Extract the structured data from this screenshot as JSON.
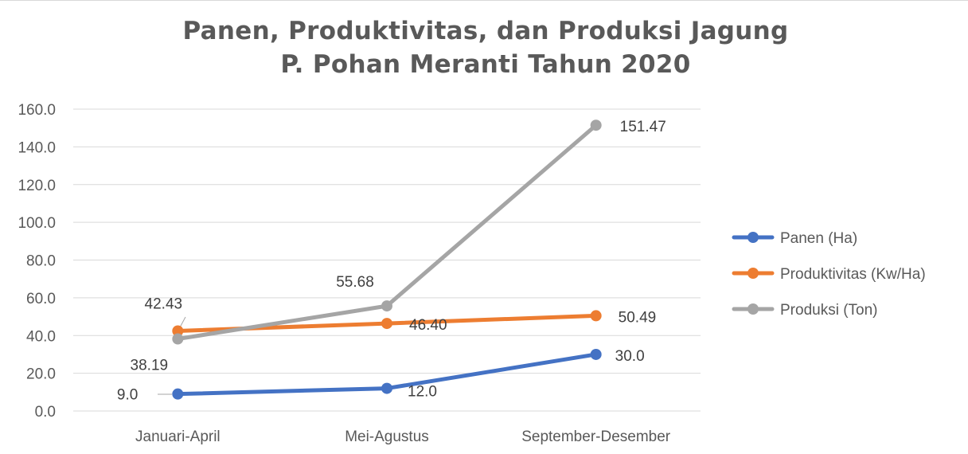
{
  "chart_data": {
    "type": "line",
    "title": [
      "Panen, Produktivitas, dan Produksi Jagung",
      "P. Pohan Meranti Tahun 2020"
    ],
    "categories": [
      "Januari-April",
      "Mei-Agustus",
      "September-Desember"
    ],
    "ylim": [
      0,
      160
    ],
    "yticks": [
      0,
      20,
      40,
      60,
      80,
      100,
      120,
      140,
      160
    ],
    "ytick_labels": [
      "0.0",
      "20.0",
      "40.0",
      "60.0",
      "80.0",
      "100.0",
      "120.0",
      "140.0",
      "160.0"
    ],
    "grid": true,
    "legend_position": "right",
    "series": [
      {
        "name": "Panen (Ha)",
        "color": "#4472C4",
        "values": [
          9.0,
          12.0,
          30.0
        ],
        "labels": [
          "9.0",
          "12.0",
          "30.0"
        ]
      },
      {
        "name": "Produktivitas (Kw/Ha)",
        "color": "#ED7D31",
        "values": [
          42.43,
          46.4,
          50.49
        ],
        "labels": [
          "42.43",
          "46.40",
          "50.49"
        ]
      },
      {
        "name": "Produksi (Ton)",
        "color": "#A5A5A5",
        "values": [
          38.19,
          55.68,
          151.47
        ],
        "labels": [
          "38.19",
          "55.68",
          "151.47"
        ]
      }
    ]
  }
}
